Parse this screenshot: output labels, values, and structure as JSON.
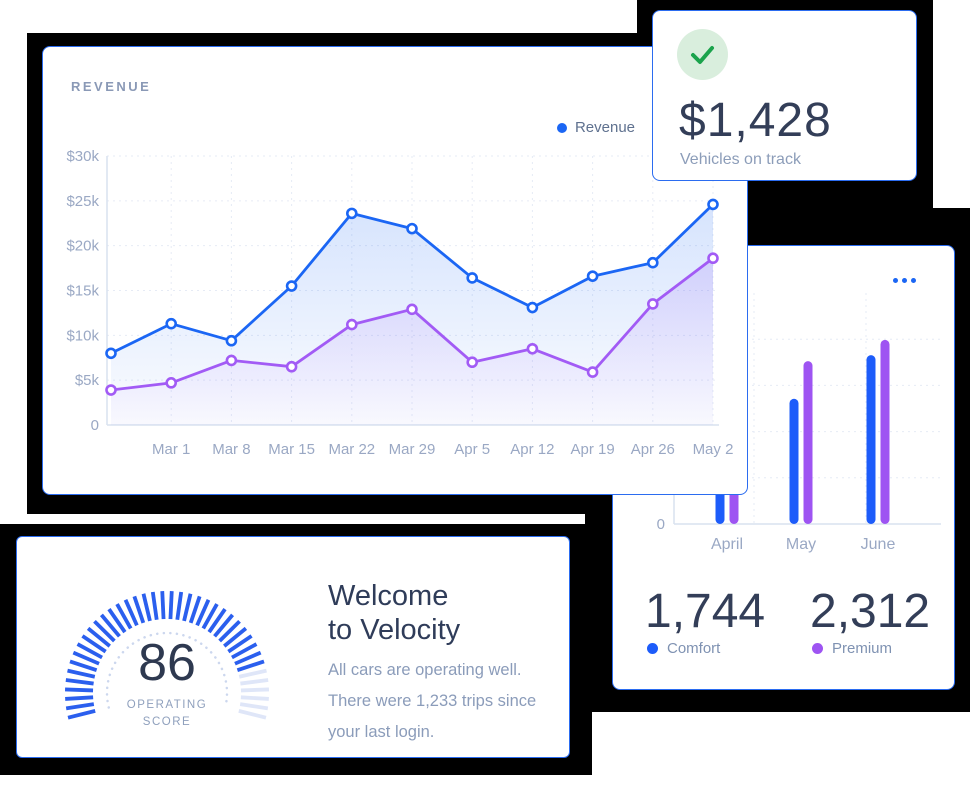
{
  "colors": {
    "accent_blue": "#1b66f4",
    "accent_purple": "#9e54f2",
    "card_border": "#2b6cf0",
    "navy_text": "#333e58",
    "muted_text": "#8c9db9",
    "axis_text": "#9aa8c4",
    "grid_line": "#e6ebf5",
    "axis_line": "#d9e2ef",
    "check_green": "#1ba34c",
    "check_green_bg": "#d9eedd",
    "shadow_black": "#000000"
  },
  "revenue_card": {
    "title": "REVENUE",
    "legend": [
      {
        "label": "Revenue",
        "color": "#1b66f4"
      }
    ]
  },
  "stat_card": {
    "icon": "check-icon",
    "value": "$1,428",
    "label": "Vehicles on track"
  },
  "bars_card": {
    "menu_icon": "ellipsis-icon",
    "totals": [
      {
        "value": "1,744",
        "label": "Comfort",
        "color": "#1d5cfa"
      },
      {
        "value": "2,312",
        "label": "Premium",
        "color": "#9e54f2"
      }
    ]
  },
  "welcome_card": {
    "score": "86",
    "score_caption": [
      "OPERATING",
      "SCORE"
    ],
    "title_lines": [
      "Welcome",
      "to Velocity"
    ],
    "body_lines": [
      "All cars are operating well.",
      "There were 1,233 trips since",
      "your last login."
    ],
    "gauge": {
      "min": 0,
      "max": 100,
      "value": 86,
      "tick_count": 40,
      "start_angle_deg": 194,
      "end_angle_deg": -14,
      "filled_color": "#2b5fee",
      "empty_color": "#dfe6f8",
      "dotted_arc_color": "#ccd7ee"
    }
  },
  "chart_data": [
    {
      "id": "revenue-line",
      "type": "line",
      "title": "REVENUE",
      "x_labels": [
        "",
        "Mar 1",
        "Mar 8",
        "Mar 15",
        "Mar 22",
        "Mar 29",
        "Apr 5",
        "Apr 12",
        "Apr 19",
        "Apr 26",
        "May 2"
      ],
      "y_ticks": [
        "$30k",
        "$25k",
        "$20k",
        "$15k",
        "$10k",
        "$5k",
        "0"
      ],
      "ylim": [
        0,
        30
      ],
      "grid": "dashed",
      "legend_position": "top-right",
      "series": [
        {
          "name": "Revenue",
          "color": "#1b66f4",
          "values_usd_k": [
            8.0,
            11.3,
            9.4,
            15.5,
            23.6,
            21.9,
            16.4,
            13.1,
            16.6,
            18.1,
            24.6
          ]
        },
        {
          "name": "",
          "color": "#a25bf5",
          "values_usd_k": [
            3.9,
            4.7,
            7.2,
            6.5,
            11.2,
            12.9,
            7.0,
            8.5,
            5.9,
            13.5,
            18.6
          ]
        }
      ]
    },
    {
      "id": "rides-bar",
      "type": "bar",
      "categories": [
        "April",
        "May",
        "June"
      ],
      "visible_y_tick": "0",
      "ylim": [
        0,
        1000
      ],
      "grid_step": 200,
      "grid": "dashed",
      "series": [
        {
          "name": "Comfort",
          "color": "#1d5cfa",
          "values": [
            471,
            542,
            731
          ],
          "total": "1,744"
        },
        {
          "name": "Premium",
          "color": "#9e54f2",
          "values": [
            810,
            705,
            797
          ],
          "total": "2,312"
        }
      ]
    }
  ]
}
